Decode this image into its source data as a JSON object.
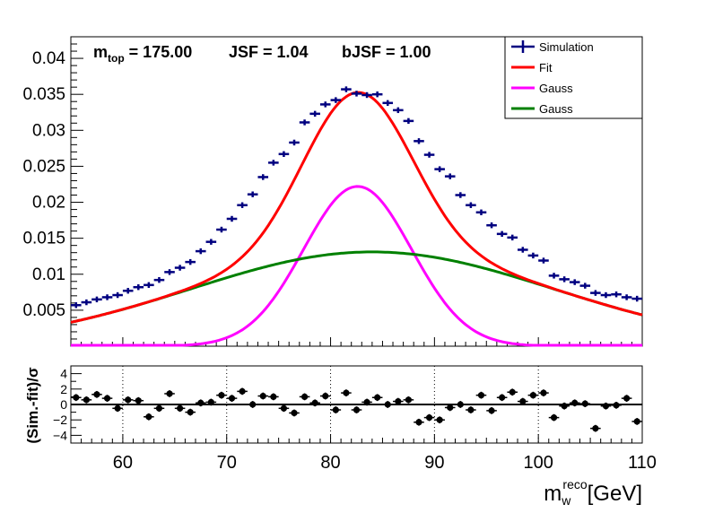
{
  "chart_data": [
    {
      "type": "line",
      "annotation": {
        "mtop_label": "m",
        "mtop_sub": "top",
        "mtop_value": " = 175.00",
        "jsf": "JSF = 1.04",
        "bjsf": "bJSF = 1.00"
      },
      "xlim": [
        55,
        110
      ],
      "ylim": [
        0,
        0.043
      ],
      "y_ticks": [
        0.005,
        0.01,
        0.015,
        0.02,
        0.025,
        0.03,
        0.035,
        0.04
      ],
      "y_tick_labels": [
        "0.005",
        "0.01",
        "0.015",
        "0.02",
        "0.025",
        "0.03",
        "0.035",
        "0.04"
      ],
      "legend": {
        "placement": "top-right",
        "entries": [
          {
            "name": "Simulation",
            "color": "#000080",
            "style": "errorbar"
          },
          {
            "name": "Fit",
            "color": "#ff0000",
            "style": "line"
          },
          {
            "name": "Gauss",
            "color": "#ff00ff",
            "style": "line"
          },
          {
            "name": "Gauss",
            "color": "#008000",
            "style": "line"
          }
        ]
      },
      "series": [
        {
          "name": "Simulation",
          "color": "#000080",
          "x": [
            55.5,
            56.5,
            57.5,
            58.5,
            59.5,
            60.5,
            61.5,
            62.5,
            63.5,
            64.5,
            65.5,
            66.5,
            67.5,
            68.5,
            69.5,
            70.5,
            71.5,
            72.5,
            73.5,
            74.5,
            75.5,
            76.5,
            77.5,
            78.5,
            79.5,
            80.5,
            81.5,
            82.5,
            83.5,
            84.5,
            85.5,
            86.5,
            87.5,
            88.5,
            89.5,
            90.5,
            91.5,
            92.5,
            93.5,
            94.5,
            95.5,
            96.5,
            97.5,
            98.5,
            99.5,
            100.5,
            101.5,
            102.5,
            103.5,
            104.5,
            105.5,
            106.5,
            107.5,
            108.5,
            109.5
          ],
          "y": [
            0.0057,
            0.0061,
            0.0065,
            0.0068,
            0.0071,
            0.0077,
            0.0082,
            0.0085,
            0.0092,
            0.0103,
            0.0109,
            0.0117,
            0.0132,
            0.0145,
            0.0162,
            0.0177,
            0.0196,
            0.0211,
            0.0235,
            0.0255,
            0.0267,
            0.0283,
            0.0311,
            0.0323,
            0.0336,
            0.0342,
            0.0357,
            0.0351,
            0.0349,
            0.035,
            0.0338,
            0.0328,
            0.0313,
            0.0285,
            0.0266,
            0.0246,
            0.0236,
            0.021,
            0.0196,
            0.0186,
            0.0168,
            0.0156,
            0.0151,
            0.0134,
            0.0126,
            0.0119,
            0.0098,
            0.0093,
            0.0089,
            0.0084,
            0.0074,
            0.0071,
            0.0072,
            0.0068,
            0.0066
          ],
          "yerr": 0.0004
        },
        {
          "name": "Fit",
          "color": "#ff0000",
          "components": "sum"
        },
        {
          "name": "Gauss",
          "color": "#ff00ff",
          "mean": 82.6,
          "sigma": 5.2,
          "amplitude": 0.0222
        },
        {
          "name": "Gauss",
          "color": "#008000",
          "mean": 84.0,
          "sigma": 17.5,
          "amplitude": 0.0131
        }
      ]
    },
    {
      "type": "scatter",
      "ylabel": "(Sim.-fit)/σ",
      "xlabel_main": "m",
      "xlabel_sub": "w",
      "xlabel_sup": "reco",
      "xlabel_unit": "[GeV]",
      "xlim": [
        55,
        110
      ],
      "ylim": [
        -5,
        5
      ],
      "x_ticks": [
        60,
        70,
        80,
        90,
        100,
        110
      ],
      "x_tick_labels": [
        "60",
        "70",
        "80",
        "90",
        "100",
        "110"
      ],
      "y_ticks": [
        -4,
        -2,
        0,
        2,
        4
      ],
      "y_tick_labels": [
        "−4",
        "−2",
        "0",
        "2",
        "4"
      ],
      "grid": "x-dotted",
      "series": [
        {
          "name": "",
          "color": "#000000",
          "x": [
            55.5,
            56.5,
            57.5,
            58.5,
            59.5,
            60.5,
            61.5,
            62.5,
            63.5,
            64.5,
            65.5,
            66.5,
            67.5,
            68.5,
            69.5,
            70.5,
            71.5,
            72.5,
            73.5,
            74.5,
            75.5,
            76.5,
            77.5,
            78.5,
            79.5,
            80.5,
            81.5,
            82.5,
            83.5,
            84.5,
            85.5,
            86.5,
            87.5,
            88.5,
            89.5,
            90.5,
            91.5,
            92.5,
            93.5,
            94.5,
            95.5,
            96.5,
            97.5,
            98.5,
            99.5,
            100.5,
            101.5,
            102.5,
            103.5,
            104.5,
            105.5,
            106.5,
            107.5,
            108.5,
            109.5
          ],
          "y": [
            0.9,
            0.6,
            1.3,
            0.8,
            -0.5,
            0.6,
            0.5,
            -1.6,
            -0.5,
            1.4,
            -0.5,
            -1.0,
            0.2,
            0.3,
            1.2,
            0.8,
            1.7,
            0.0,
            1.1,
            1.0,
            -0.5,
            -1.1,
            1.0,
            0.2,
            1.1,
            -0.7,
            1.5,
            -0.7,
            0.3,
            0.9,
            0.0,
            0.4,
            0.6,
            -2.3,
            -1.7,
            -2.0,
            -0.4,
            0.0,
            -0.7,
            1.2,
            -0.8,
            0.9,
            1.6,
            0.4,
            1.2,
            1.5,
            -1.7,
            -0.2,
            0.2,
            0.1,
            -3.1,
            -0.2,
            -0.1,
            0.8,
            -2.2
          ],
          "yerr": 0.45
        }
      ]
    }
  ]
}
